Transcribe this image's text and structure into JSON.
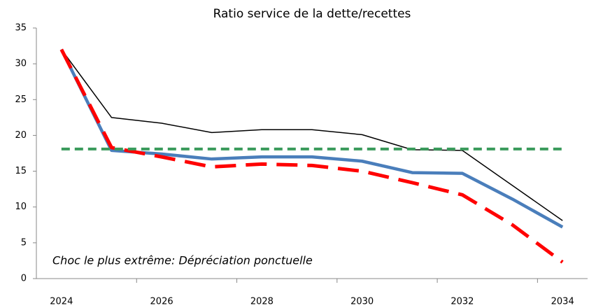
{
  "chart_data": {
    "type": "line",
    "title": "Ratio service de la dette/recettes",
    "annotation": "Choc le plus extrême: Dépréciation ponctuelle",
    "categories": [
      "2024",
      null,
      "2026",
      null,
      "2028",
      null,
      "2030",
      null,
      "2032",
      null,
      "2034"
    ],
    "series": [
      {
        "color": "#000000",
        "width": 1.5,
        "dashed": false,
        "values": [
          32,
          22.5,
          21.7,
          20.4,
          20.8,
          20.8,
          20.1,
          18.0,
          17.9,
          13.0,
          8.1
        ]
      },
      {
        "color": "#4a7ebb",
        "width": 4.5,
        "dashed": false,
        "values": [
          32,
          17.9,
          17.4,
          16.7,
          17.0,
          17.0,
          16.4,
          14.8,
          14.7,
          11.1,
          7.2
        ]
      },
      {
        "color": "#ff0000",
        "width": 5,
        "dashed": true,
        "values": [
          32,
          18.3,
          17.0,
          15.6,
          16.0,
          15.8,
          15.0,
          13.4,
          11.7,
          7.5,
          2.3
        ]
      },
      {
        "color": "#3a9a5b",
        "width": 4,
        "dashed": true,
        "values": [
          18.1,
          18.1,
          18.1,
          18.1,
          18.1,
          18.1,
          18.1,
          18.1,
          18.1,
          18.1,
          18.1
        ]
      }
    ],
    "ylim": [
      0,
      35
    ],
    "yticks": [
      0,
      5,
      10,
      15,
      20,
      25,
      30,
      35
    ],
    "grid": false
  }
}
